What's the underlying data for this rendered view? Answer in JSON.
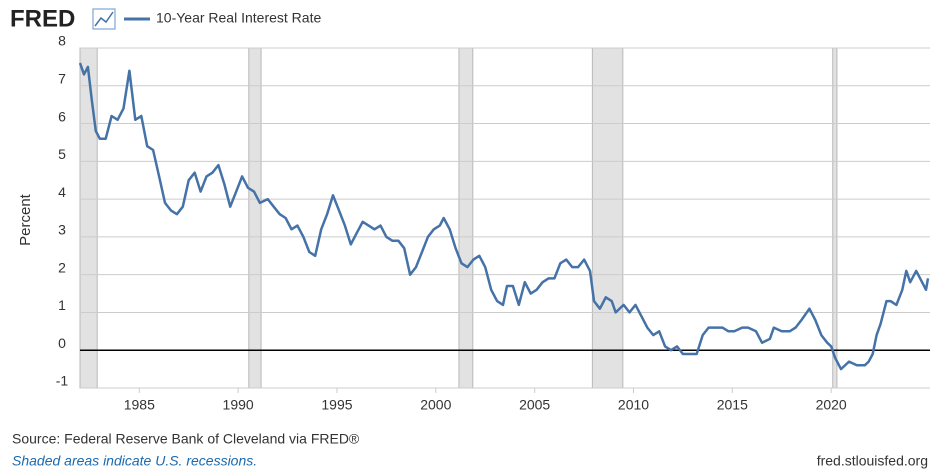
{
  "logo": "FRED",
  "chart_data": {
    "type": "line",
    "y_label": "Percent",
    "x": [
      1982.0,
      1982.2,
      1982.4,
      1982.6,
      1982.8,
      1983.0,
      1983.3,
      1983.6,
      1983.9,
      1984.2,
      1984.5,
      1984.8,
      1985.1,
      1985.4,
      1985.7,
      1986.0,
      1986.3,
      1986.6,
      1986.9,
      1987.2,
      1987.5,
      1987.8,
      1988.1,
      1988.4,
      1988.7,
      1989.0,
      1989.3,
      1989.6,
      1989.9,
      1990.2,
      1990.5,
      1990.8,
      1991.1,
      1991.5,
      1991.8,
      1992.1,
      1992.4,
      1992.7,
      1993.0,
      1993.3,
      1993.6,
      1993.9,
      1994.2,
      1994.5,
      1994.8,
      1995.1,
      1995.4,
      1995.7,
      1996.0,
      1996.3,
      1996.6,
      1996.9,
      1997.2,
      1997.5,
      1997.8,
      1998.1,
      1998.4,
      1998.7,
      1999.0,
      1999.3,
      1999.6,
      1999.9,
      2000.2,
      2000.4,
      2000.7,
      2001.0,
      2001.3,
      2001.6,
      2001.9,
      2002.2,
      2002.5,
      2002.8,
      2003.1,
      2003.4,
      2003.6,
      2003.9,
      2004.2,
      2004.5,
      2004.8,
      2005.1,
      2005.4,
      2005.7,
      2006.0,
      2006.3,
      2006.6,
      2006.9,
      2007.2,
      2007.5,
      2007.8,
      2008.0,
      2008.3,
      2008.6,
      2008.9,
      2009.1,
      2009.5,
      2009.8,
      2010.1,
      2010.4,
      2010.7,
      2011.0,
      2011.3,
      2011.6,
      2011.9,
      2012.2,
      2012.5,
      2012.9,
      2013.2,
      2013.5,
      2013.8,
      2014.1,
      2014.5,
      2014.8,
      2015.1,
      2015.5,
      2015.8,
      2016.2,
      2016.5,
      2016.9,
      2017.1,
      2017.5,
      2017.9,
      2018.2,
      2018.5,
      2018.9,
      2019.2,
      2019.5,
      2019.8,
      2020.0,
      2020.2,
      2020.5,
      2020.9,
      2021.3,
      2021.7,
      2021.9,
      2022.1,
      2022.3,
      2022.5,
      2022.8,
      2023.0,
      2023.3,
      2023.6,
      2023.8,
      2024.0,
      2024.3,
      2024.6,
      2024.8,
      2024.9
    ],
    "series": [
      {
        "name": "10-Year Real Interest Rate",
        "color": "#4572a7",
        "values": [
          7.6,
          7.3,
          7.5,
          6.6,
          5.8,
          5.6,
          5.6,
          6.2,
          6.1,
          6.4,
          7.4,
          6.1,
          6.2,
          5.4,
          5.3,
          4.6,
          3.9,
          3.7,
          3.6,
          3.8,
          4.5,
          4.7,
          4.2,
          4.6,
          4.7,
          4.9,
          4.4,
          3.8,
          4.2,
          4.6,
          4.3,
          4.2,
          3.9,
          4.0,
          3.8,
          3.6,
          3.5,
          3.2,
          3.3,
          3.0,
          2.6,
          2.5,
          3.2,
          3.6,
          4.1,
          3.7,
          3.3,
          2.8,
          3.1,
          3.4,
          3.3,
          3.2,
          3.3,
          3.0,
          2.9,
          2.9,
          2.7,
          2.0,
          2.2,
          2.6,
          3.0,
          3.2,
          3.3,
          3.5,
          3.2,
          2.7,
          2.3,
          2.2,
          2.4,
          2.5,
          2.2,
          1.6,
          1.3,
          1.2,
          1.7,
          1.7,
          1.2,
          1.8,
          1.5,
          1.6,
          1.8,
          1.9,
          1.9,
          2.3,
          2.4,
          2.2,
          2.2,
          2.4,
          2.1,
          1.3,
          1.1,
          1.4,
          1.3,
          1.0,
          1.2,
          1.0,
          1.2,
          0.9,
          0.6,
          0.4,
          0.5,
          0.1,
          0.0,
          0.1,
          -0.1,
          -0.1,
          -0.1,
          0.4,
          0.6,
          0.6,
          0.6,
          0.5,
          0.5,
          0.6,
          0.6,
          0.5,
          0.2,
          0.3,
          0.6,
          0.5,
          0.5,
          0.6,
          0.8,
          1.1,
          0.8,
          0.4,
          0.2,
          0.1,
          -0.2,
          -0.5,
          -0.3,
          -0.4,
          -0.4,
          -0.3,
          -0.1,
          0.4,
          0.7,
          1.3,
          1.3,
          1.2,
          1.6,
          2.1,
          1.8,
          2.1,
          1.8,
          1.6,
          1.9
        ]
      }
    ],
    "recessions": [
      [
        1982.0,
        1982.87
      ],
      [
        1990.54,
        1991.16
      ],
      [
        2001.17,
        2001.87
      ],
      [
        2007.92,
        2009.46
      ],
      [
        2020.08,
        2020.29
      ]
    ],
    "xlim": [
      1982,
      2025
    ],
    "xticks": [
      1985,
      1990,
      1995,
      2000,
      2005,
      2010,
      2015,
      2020
    ],
    "ylim": [
      -1,
      8
    ],
    "yticks": [
      -1,
      0,
      1,
      2,
      3,
      4,
      5,
      6,
      7,
      8
    ],
    "grid": true
  },
  "footer": {
    "source": "Source: Federal Reserve Bank of Cleveland via FRED®",
    "note": "Shaded areas indicate U.S. recessions.",
    "url": "fred.stlouisfed.org"
  }
}
